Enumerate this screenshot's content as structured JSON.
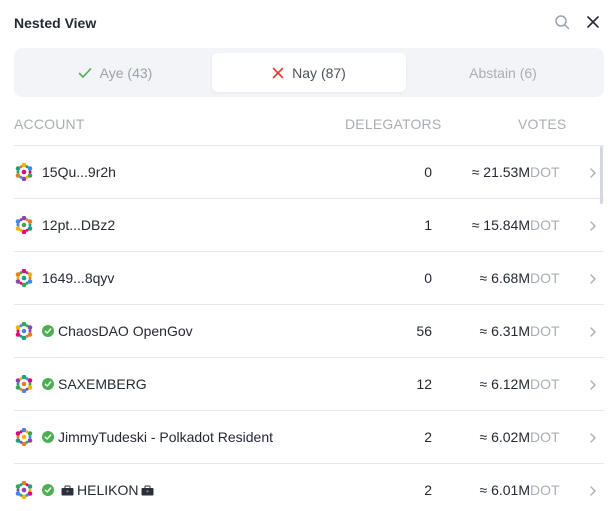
{
  "header": {
    "title": "Nested View",
    "search_icon": "search-icon",
    "close_icon": "close-icon"
  },
  "tabs": [
    {
      "label": "Aye (43)",
      "icon": "check-icon",
      "color": "#4caf50"
    },
    {
      "label": "Nay (87)",
      "icon": "x-icon",
      "color": "#e53935",
      "selected": true
    },
    {
      "label": "Abstain (6)"
    }
  ],
  "columns": {
    "account": "ACCOUNT",
    "delegators": "DELEGATORS",
    "votes": "VOTES"
  },
  "rows": [
    {
      "account": "15Qu...9r2h",
      "verified": false,
      "delegators": "0",
      "votes": "≈ 21.53M",
      "unit": "DOT"
    },
    {
      "account": "12pt...DBz2",
      "verified": false,
      "delegators": "1",
      "votes": "≈ 15.84M",
      "unit": "DOT"
    },
    {
      "account": "1649...8qyv",
      "verified": false,
      "delegators": "0",
      "votes": "≈ 6.68M",
      "unit": "DOT"
    },
    {
      "account": "ChaosDAO OpenGov",
      "verified": true,
      "delegators": "56",
      "votes": "≈ 6.31M",
      "unit": "DOT"
    },
    {
      "account": "SAXEMBERG",
      "verified": true,
      "delegators": "12",
      "votes": "≈ 6.12M",
      "unit": "DOT"
    },
    {
      "account": "JimmyTudeski - Polkadot Resident",
      "verified": true,
      "delegators": "2",
      "votes": "≈ 6.02M",
      "unit": "DOT"
    },
    {
      "account": "HELIKON",
      "verified": true,
      "delegators": "2",
      "votes": "≈ 6.01M",
      "unit": "DOT",
      "emoji": "toolbox-icon"
    }
  ],
  "colors": {
    "accent_green": "#4caf50",
    "accent_red": "#e53935",
    "muted": "#a9aeb6",
    "text": "#242a35"
  }
}
